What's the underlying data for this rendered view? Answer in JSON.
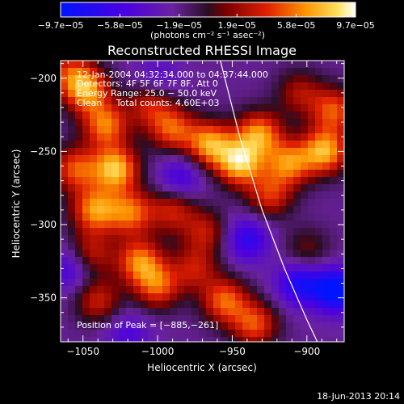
{
  "chart_data": {
    "type": "heatmap",
    "title": "Reconstructed RHESSI Image",
    "xlabel": "Heliocentric X (arcsec)",
    "ylabel": "Heliocentric Y (arcsec)",
    "xlim": [
      -1065,
      -875
    ],
    "ylim": [
      -380,
      -188
    ],
    "x_ticks": [
      -1050,
      -1000,
      -950,
      -900
    ],
    "y_ticks": [
      -200,
      -250,
      -300,
      -350
    ],
    "x_tick_labels": [
      "−1050",
      "−1000",
      "−950",
      "−900"
    ],
    "y_tick_labels": [
      "−200",
      "−250",
      "−300",
      "−350"
    ],
    "colorbar": {
      "range": [
        -9.7e-05,
        9.7e-05
      ],
      "tick_values": [
        -9.7e-05,
        -5.8e-05,
        -1.9e-05,
        1.9e-05,
        5.8e-05,
        9.7e-05
      ],
      "tick_labels": [
        "−9.7e−05",
        "−5.8e−05",
        "−1.9e−05",
        "1.9e−05",
        "5.8e−05",
        "9.7e−05"
      ],
      "units_text": "(photons cm⁻² s⁻¹ asec⁻²)"
    },
    "annotations": {
      "time_range": "12-Jan-2004 04:32:34.000 to 04:37:44.000",
      "detectors": "Detectors: 4F 5F 6F 7F 8F, Att 0",
      "energy": "Energy Range: 25.0 − 50.0 keV",
      "clean": "Clean     Total counts: 4.60E+03",
      "peak": "Position of Peak = [−885,−261]"
    },
    "peak_position": [
      -885,
      -261
    ],
    "limb_curve": {
      "x": [
        -958,
        -945,
        -930,
        -915,
        -900,
        -893
      ],
      "y": [
        -188,
        -240,
        -290,
        -330,
        -365,
        -380
      ]
    },
    "blobs": [
      {
        "x": -1048,
        "y": -208,
        "w": 0.9
      },
      {
        "x": -1035,
        "y": -232,
        "w": 0.8
      },
      {
        "x": -1055,
        "y": -262,
        "w": 0.7
      },
      {
        "x": -1028,
        "y": -262,
        "w": 1.0
      },
      {
        "x": -1042,
        "y": -290,
        "w": 0.85
      },
      {
        "x": -1018,
        "y": -292,
        "w": 0.75
      },
      {
        "x": -1005,
        "y": -218,
        "w": 0.55
      },
      {
        "x": -990,
        "y": -235,
        "w": 0.7
      },
      {
        "x": -965,
        "y": -245,
        "w": 0.9
      },
      {
        "x": -945,
        "y": -258,
        "w": 1.0
      },
      {
        "x": -932,
        "y": -238,
        "w": 0.85
      },
      {
        "x": -925,
        "y": -280,
        "w": 0.6
      },
      {
        "x": -912,
        "y": -258,
        "w": 0.8
      },
      {
        "x": -888,
        "y": -250,
        "w": 0.95
      },
      {
        "x": -882,
        "y": -222,
        "w": 0.7
      },
      {
        "x": -990,
        "y": -290,
        "w": 0.55
      },
      {
        "x": -968,
        "y": -305,
        "w": 0.5
      },
      {
        "x": -1045,
        "y": -320,
        "w": 0.55
      },
      {
        "x": -1012,
        "y": -325,
        "w": 0.8
      },
      {
        "x": -1000,
        "y": -342,
        "w": 0.7
      },
      {
        "x": -975,
        "y": -330,
        "w": 0.5
      },
      {
        "x": -955,
        "y": -352,
        "w": 0.75
      },
      {
        "x": -1040,
        "y": -352,
        "w": 0.55
      },
      {
        "x": -935,
        "y": -368,
        "w": 0.7
      },
      {
        "x": -900,
        "y": -318,
        "w": 0.35
      },
      {
        "x": -905,
        "y": -210,
        "w": 0.45
      },
      {
        "x": -1060,
        "y": -195,
        "w": 0.5
      }
    ],
    "dips": [
      {
        "x": -940,
        "y": -310,
        "w": 0.55
      },
      {
        "x": -905,
        "y": -340,
        "w": 0.65
      },
      {
        "x": -880,
        "y": -345,
        "w": 0.85
      },
      {
        "x": -985,
        "y": -268,
        "w": 0.45
      },
      {
        "x": -1058,
        "y": -330,
        "w": 0.45
      },
      {
        "x": -1020,
        "y": -375,
        "w": 0.35
      },
      {
        "x": -1000,
        "y": -200,
        "w": 0.3
      }
    ]
  },
  "footer": {
    "date": "18-Jun-2013 20:14"
  }
}
